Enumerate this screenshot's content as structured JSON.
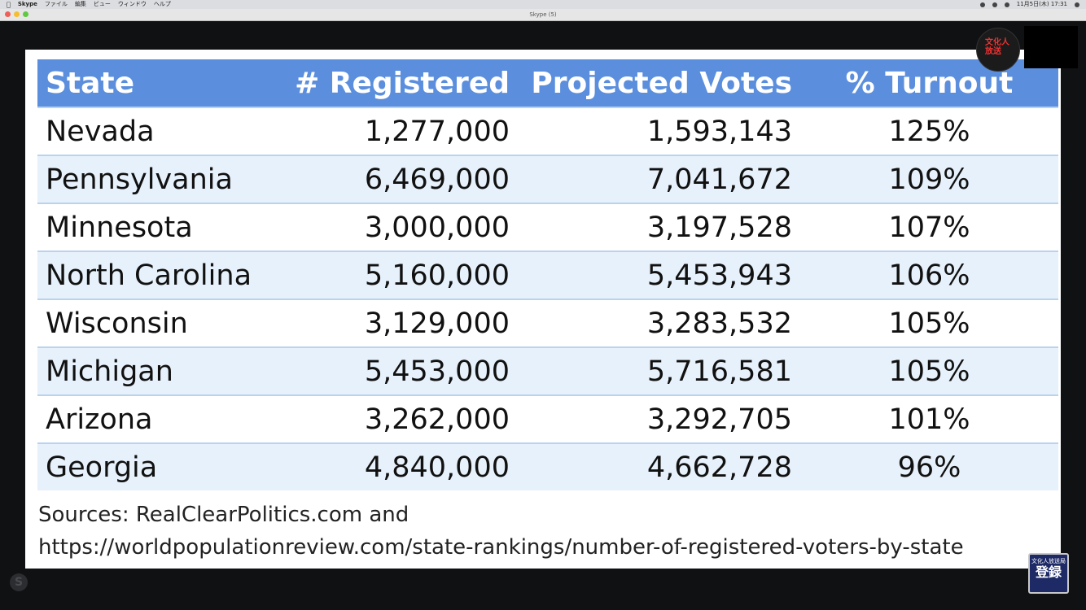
{
  "menubar": {
    "apple": "",
    "app": "Skype",
    "items": [
      "ファイル",
      "編集",
      "ビュー",
      "ウィンドウ",
      "ヘルプ"
    ],
    "clock": "11月5日(木) 17:31"
  },
  "window": {
    "title": "Skype (5)"
  },
  "table": {
    "headers": {
      "state": "State",
      "registered": "# Registered",
      "projected": "Projected Votes",
      "turnout": "% Turnout"
    },
    "rows": [
      {
        "state": "Nevada",
        "registered": "1,277,000",
        "projected": "1,593,143",
        "turnout": "125%"
      },
      {
        "state": "Pennsylvania",
        "registered": "6,469,000",
        "projected": "7,041,672",
        "turnout": "109%"
      },
      {
        "state": "Minnesota",
        "registered": "3,000,000",
        "projected": "3,197,528",
        "turnout": "107%"
      },
      {
        "state": "North Carolina",
        "registered": "5,160,000",
        "projected": "5,453,943",
        "turnout": "106%"
      },
      {
        "state": "Wisconsin",
        "registered": "3,129,000",
        "projected": "3,283,532",
        "turnout": "105%"
      },
      {
        "state": "Michigan",
        "registered": "5,453,000",
        "projected": "5,716,581",
        "turnout": "105%"
      },
      {
        "state": "Arizona",
        "registered": "3,262,000",
        "projected": "3,292,705",
        "turnout": "101%"
      },
      {
        "state": "Georgia",
        "registered": "4,840,000",
        "projected": "4,662,728",
        "turnout": "96%"
      }
    ]
  },
  "sources": {
    "line1": "Sources: RealClearPolitics.com and",
    "line2": "https://worldpopulationreview.com/state-rankings/number-of-registered-voters-by-state"
  },
  "overlay": {
    "logo_text": "文化人放送",
    "skype_mark": "S",
    "register_top": "文化人放送局",
    "register_bottom": "登録"
  },
  "colors": {
    "header_blue": "#5b8fdd",
    "row_alt": "#e7f1fb",
    "row_border": "#b9d3ee",
    "background": "#111214"
  },
  "icons": [
    "apple-icon",
    "skype-icon",
    "wifi-icon",
    "battery-icon",
    "search-icon"
  ]
}
